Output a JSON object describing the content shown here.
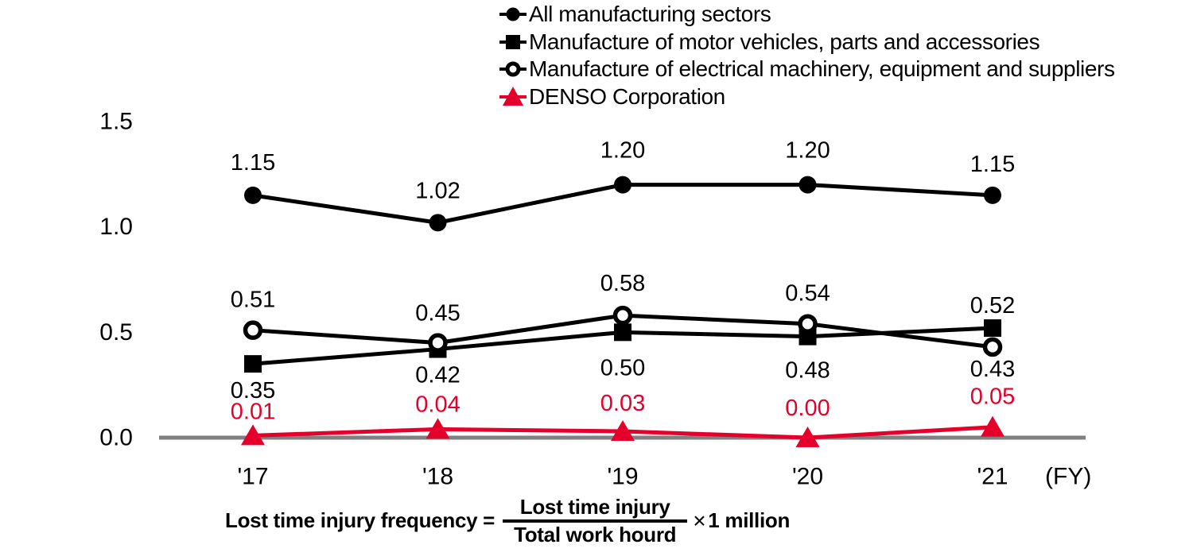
{
  "colors": {
    "black": "#000000",
    "denso_red": "#e4002b",
    "axis_gray": "#808080",
    "background": "#ffffff"
  },
  "chart_data": {
    "type": "line",
    "x": [
      "'17",
      "'18",
      "'19",
      "'20",
      "'21"
    ],
    "x_axis_suffix": "(FY)",
    "ylim": [
      0,
      1.5
    ],
    "yticks": [
      0.0,
      0.5,
      1.0,
      1.5
    ],
    "grid": false,
    "legend_position": "top-center",
    "series": [
      {
        "name": "All manufacturing sectors",
        "marker": "filled-circle",
        "color": "#000000",
        "values": [
          1.15,
          1.02,
          1.2,
          1.2,
          1.15
        ],
        "labels": [
          "1.15",
          "1.02",
          "1.20",
          "1.20",
          "1.15"
        ],
        "label_dy": [
          -41,
          -40,
          -43,
          -43,
          -39
        ]
      },
      {
        "name": "Manufacture of motor vehicles, parts and accessories",
        "marker": "filled-square",
        "color": "#000000",
        "values": [
          0.35,
          0.42,
          0.5,
          0.48,
          0.52
        ],
        "labels": [
          "0.35",
          "0.42",
          "0.50",
          "0.48",
          "0.52"
        ],
        "label_dy": [
          34,
          33,
          45,
          43,
          -28
        ]
      },
      {
        "name": "Manufacture of electrical machinery, equipment and suppliers",
        "marker": "open-circle",
        "color": "#000000",
        "values": [
          0.51,
          0.45,
          0.58,
          0.54,
          0.43
        ],
        "labels": [
          "0.51",
          "0.45",
          "0.58",
          "0.54",
          "0.43"
        ],
        "label_dy": [
          -38,
          -37,
          -40,
          -38,
          28
        ]
      },
      {
        "name": "DENSO Corporation",
        "marker": "filled-triangle",
        "color": "#e4002b",
        "values": [
          0.01,
          0.04,
          0.03,
          0.0,
          0.05
        ],
        "labels": [
          "0.01",
          "0.04",
          "0.03",
          "0.00",
          "0.05"
        ],
        "label_dy": [
          -30,
          -31,
          -35,
          -37,
          -38
        ]
      }
    ]
  },
  "formula": {
    "lhs": "Lost time injury frequency =",
    "numerator": "Lost time injury",
    "denominator": "Total work hourd",
    "times": "×",
    "multiplier": "1 million"
  }
}
